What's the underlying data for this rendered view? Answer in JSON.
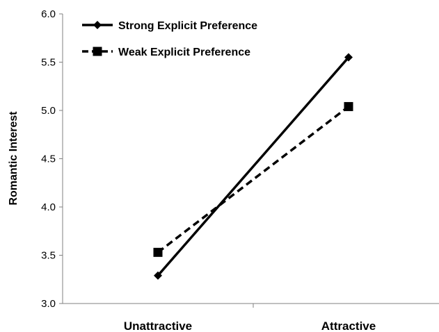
{
  "chart_data": {
    "type": "line",
    "categories": [
      "Unattractive",
      "Attractive"
    ],
    "series": [
      {
        "name": "Strong Explicit Preference",
        "values": [
          3.29,
          5.55
        ],
        "line_style": "solid",
        "marker": "diamond",
        "color": "#000000"
      },
      {
        "name": "Weak Explicit Preference",
        "values": [
          3.53,
          5.04
        ],
        "line_style": "dashed",
        "marker": "square",
        "color": "#000000"
      }
    ],
    "ylabel": "Romantic Interest",
    "ylim": [
      3.0,
      6.0
    ],
    "yticks": [
      "3.0",
      "3.5",
      "4.0",
      "4.5",
      "5.0",
      "5.5",
      "6.0"
    ],
    "grid": false,
    "legend_position": "top-left"
  }
}
